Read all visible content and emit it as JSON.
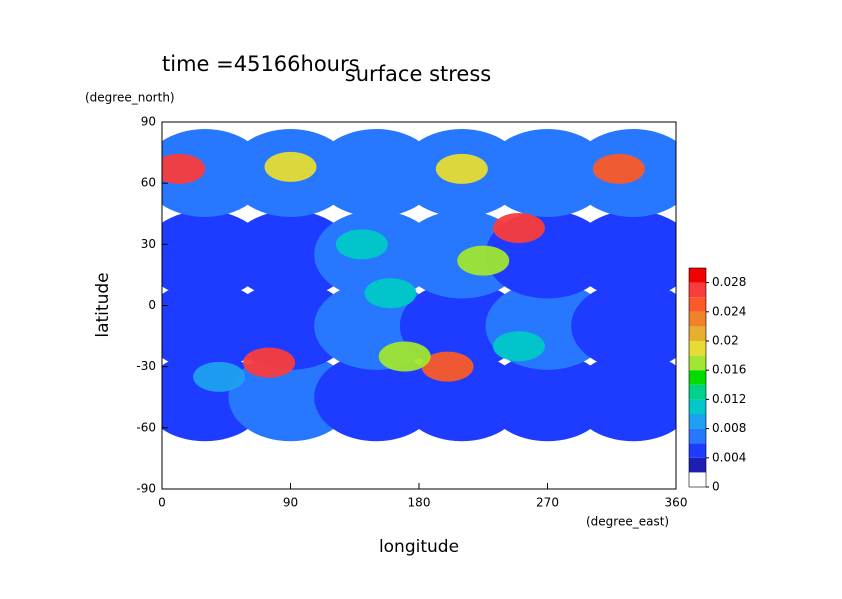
{
  "chart_data": {
    "type": "contour",
    "title": "surface stress",
    "subtitle": "time =45166hours",
    "x_label": "longitude",
    "y_label": "latitude",
    "x_unit": "(degree_east)",
    "y_unit": "(degree_north)",
    "xlim": [
      0,
      360
    ],
    "xticks": [
      0,
      90,
      180,
      270,
      360
    ],
    "ylim": [
      -90,
      90
    ],
    "yticks": [
      -90,
      -60,
      -30,
      0,
      30,
      60,
      90
    ],
    "levels": [
      0,
      0.002,
      0.004,
      0.006,
      0.008,
      0.01,
      0.012,
      0.014,
      0.016,
      0.018,
      0.02,
      0.022,
      0.024,
      0.026,
      0.028,
      0.03
    ],
    "colors": [
      "#ffffff",
      "#1e1eb4",
      "#1e3cff",
      "#2878ff",
      "#1ea0f0",
      "#00c8c8",
      "#00d28c",
      "#00dc00",
      "#a0e632",
      "#e6dc32",
      "#e6af2d",
      "#f08228",
      "#fa5a28",
      "#fa3c3c",
      "#f00000"
    ],
    "colorbar_ticks": [
      0,
      0.004,
      0.008,
      0.012,
      0.016,
      0.02,
      0.024,
      0.028
    ],
    "x": [
      30,
      90,
      150,
      210,
      270,
      330,
      30,
      90,
      150,
      210,
      270,
      330,
      30,
      90,
      150,
      210,
      270,
      330,
      30,
      90,
      150,
      210,
      270,
      330,
      12,
      90,
      210,
      320,
      250,
      225,
      75,
      200,
      170,
      160,
      250,
      40,
      140
    ],
    "y": [
      -45,
      -45,
      -45,
      -45,
      -45,
      -45,
      -10,
      -10,
      -10,
      -10,
      -10,
      -10,
      25,
      25,
      25,
      25,
      25,
      25,
      65,
      65,
      65,
      65,
      65,
      65,
      67,
      68,
      67,
      67,
      38,
      22,
      -28,
      -30,
      -25,
      6,
      -20,
      -35,
      30
    ],
    "values": [
      0.005,
      0.006,
      0.005,
      0.005,
      0.005,
      0.005,
      0.005,
      0.005,
      0.006,
      0.005,
      0.006,
      0.005,
      0.005,
      0.005,
      0.006,
      0.006,
      0.005,
      0.005,
      0.007,
      0.007,
      0.006,
      0.007,
      0.006,
      0.007,
      0.026,
      0.018,
      0.018,
      0.024,
      0.026,
      0.016,
      0.026,
      0.024,
      0.016,
      0.01,
      0.01,
      0.008,
      0.01
    ]
  }
}
